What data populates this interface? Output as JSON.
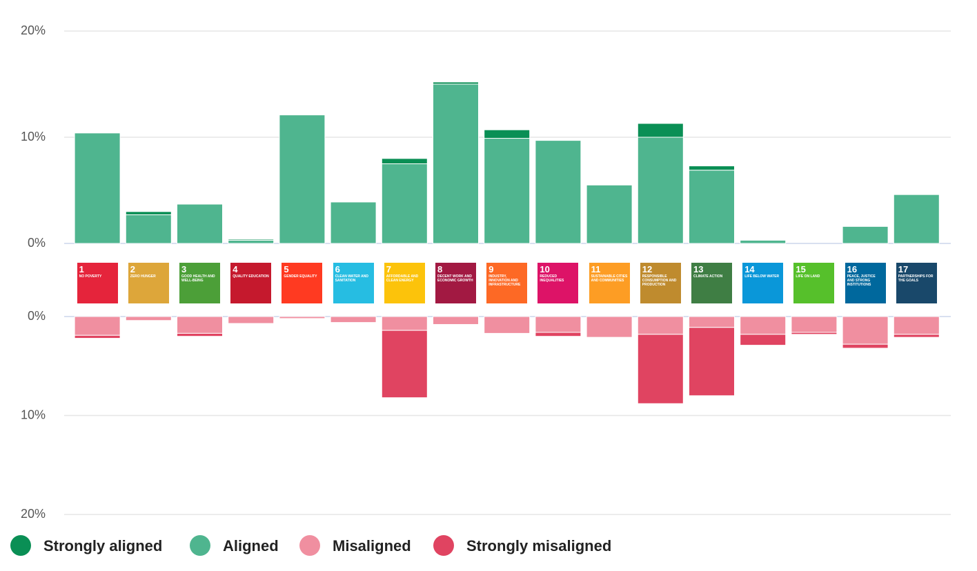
{
  "chart_data": [
    {
      "type": "bar",
      "stacked": true,
      "direction": "up",
      "grid": true,
      "categories": [
        "1",
        "2",
        "3",
        "4",
        "5",
        "6",
        "7",
        "8",
        "9",
        "10",
        "11",
        "12",
        "13",
        "14",
        "15",
        "16",
        "17"
      ],
      "goal_names": [
        "NO POVERTY",
        "ZERO HUNGER",
        "GOOD HEALTH AND WELL-BEING",
        "QUALITY EDUCATION",
        "GENDER EQUALITY",
        "CLEAN WATER AND SANITATION",
        "AFFORDABLE AND CLEAN ENERGY",
        "DECENT WORK AND ECONOMIC GROWTH",
        "INDUSTRY, INNOVATION AND INFRASTRUCTURE",
        "REDUCED INEQUALITIES",
        "SUSTAINABLE CITIES AND COMMUNITIES",
        "RESPONSIBLE CONSUMPTION AND PRODUCTION",
        "CLIMATE ACTION",
        "LIFE BELOW WATER",
        "LIFE ON LAND",
        "PEACE, JUSTICE AND STRONG INSTITUTIONS",
        "PARTNERSHIPS FOR THE GOALS"
      ],
      "category_colors": [
        "#e5243b",
        "#dda63a",
        "#4c9f38",
        "#c5192d",
        "#ff3a21",
        "#26bde2",
        "#fcc30b",
        "#a21942",
        "#fd6925",
        "#dd1367",
        "#fd9d24",
        "#bf8b2e",
        "#3f7e44",
        "#0a97d9",
        "#56c02b",
        "#00689d",
        "#19486a"
      ],
      "ylim": [
        0,
        20
      ],
      "yticks": [
        {
          "value": 0,
          "label": "0%"
        },
        {
          "value": 10,
          "label": "10%"
        },
        {
          "value": 20,
          "label": "20%"
        }
      ],
      "series": [
        {
          "name": "Strongly aligned",
          "color": "#0a8f55",
          "values": [
            0,
            0.3,
            0,
            0.1,
            0,
            0,
            0.5,
            0.2,
            0.8,
            0,
            0,
            1.3,
            0.4,
            0,
            0,
            0,
            0
          ]
        },
        {
          "name": "Aligned",
          "color": "#4fb58f",
          "values": [
            10.4,
            2.7,
            3.7,
            0.3,
            12.1,
            3.9,
            7.5,
            15.0,
            9.9,
            9.7,
            5.5,
            10.0,
            6.9,
            0.3,
            0,
            1.6,
            4.6
          ]
        }
      ]
    },
    {
      "type": "bar",
      "stacked": true,
      "direction": "down",
      "grid": true,
      "ylim": [
        0,
        20
      ],
      "yticks": [
        {
          "value": 0,
          "label": "0%"
        },
        {
          "value": 10,
          "label": "10%"
        },
        {
          "value": 20,
          "label": "20%"
        }
      ],
      "series": [
        {
          "name": "Misaligned",
          "color": "#f08fa0",
          "values": [
            1.9,
            0.4,
            1.7,
            0.7,
            0.2,
            0.6,
            1.4,
            0.8,
            1.7,
            1.6,
            2.1,
            1.8,
            1.1,
            1.8,
            1.6,
            2.8,
            1.8
          ]
        },
        {
          "name": "Strongly misaligned",
          "color": "#e04461",
          "values": [
            0.3,
            0,
            0.3,
            0,
            0,
            0,
            6.8,
            0,
            0,
            0.4,
            0,
            7.0,
            6.9,
            1.1,
            0.2,
            0.4,
            0.3
          ]
        }
      ]
    }
  ]
}
